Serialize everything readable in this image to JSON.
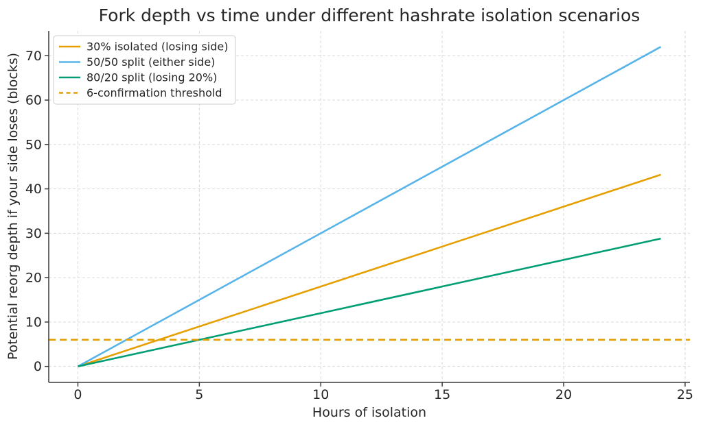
{
  "chart_data": {
    "type": "line",
    "title": "Fork depth vs time under different hashrate isolation scenarios",
    "xlabel": "Hours of isolation",
    "ylabel": "Potential reorg depth if your side loses (blocks)",
    "xlim": [
      -1.2,
      25.2
    ],
    "ylim": [
      -3.6,
      75.6
    ],
    "xticks": [
      0,
      5,
      10,
      15,
      20,
      25
    ],
    "yticks": [
      0,
      10,
      20,
      30,
      40,
      50,
      60,
      70
    ],
    "grid": true,
    "legend_position": "upper-left",
    "background": "#ffffff",
    "series": [
      {
        "name": "30% isolated (losing side)",
        "color": "#E69F00",
        "style": "solid",
        "x": [
          0,
          24
        ],
        "y": [
          0,
          43.2
        ]
      },
      {
        "name": "50/50 split (either side)",
        "color": "#56B4E9",
        "style": "solid",
        "x": [
          0,
          24
        ],
        "y": [
          0,
          72
        ]
      },
      {
        "name": "80/20 split (losing 20%)",
        "color": "#009E73",
        "style": "solid",
        "x": [
          0,
          24
        ],
        "y": [
          0,
          28.8
        ]
      },
      {
        "name": "6-confirmation threshold",
        "color": "#E69F00",
        "style": "dashed",
        "x": [
          -1.2,
          25.2
        ],
        "y": [
          6,
          6
        ]
      }
    ]
  }
}
